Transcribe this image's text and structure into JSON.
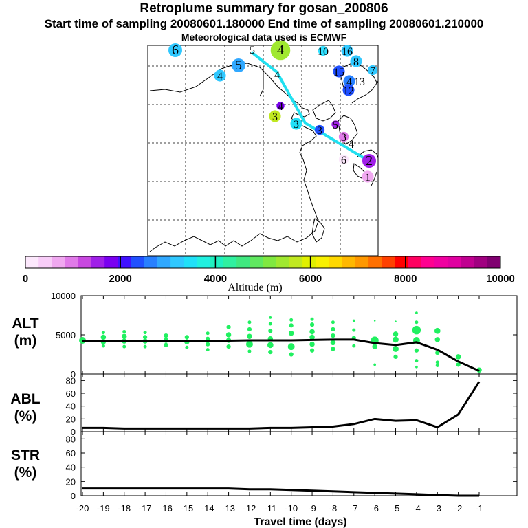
{
  "header": {
    "title": "Retroplume summary for gosan_200806",
    "sampling": "Start time of sampling 20080601.180000     End time of sampling 20080601.210000",
    "met": "Meteorological data used is ECMWF"
  },
  "colorbar": {
    "label": "Altitude (m)",
    "ticks": [
      "0",
      "2000",
      "4000",
      "6000",
      "8000",
      "10000"
    ],
    "colors": [
      "#fce8fc",
      "#f8cdf8",
      "#f0a8f0",
      "#e07ae8",
      "#c848e0",
      "#a020e8",
      "#7a00f0",
      "#4010ff",
      "#2050ff",
      "#2880ff",
      "#30a8ff",
      "#30c8ff",
      "#20e0f8",
      "#20f0e0",
      "#20f0c0",
      "#30f0a0",
      "#40e880",
      "#60e860",
      "#80e840",
      "#a0e830",
      "#c0e820",
      "#e0f000",
      "#f8f000",
      "#ffd800",
      "#ffb800",
      "#ff9800",
      "#ff7000",
      "#ff4000",
      "#ff0000",
      "#ff0060",
      "#ff0090",
      "#f000a0",
      "#e000a0",
      "#c00090",
      "#a00080",
      "#800070"
    ]
  },
  "map": {
    "labels": [
      {
        "t": "6",
        "c": "#30c8ff"
      },
      {
        "t": "5",
        "c": "#30a8ff"
      },
      {
        "t": "4",
        "c": "#30c8ff"
      },
      {
        "t": "5",
        "c": "#ffffff"
      },
      {
        "t": "4",
        "c": "#a0e830"
      },
      {
        "t": "4",
        "c": "#ffffff"
      },
      {
        "t": "10",
        "c": "#30e0ff"
      },
      {
        "t": "16",
        "c": "#30c8ff"
      },
      {
        "t": "8",
        "c": "#30c8ff"
      },
      {
        "t": "7",
        "c": "#30c8ff"
      },
      {
        "t": "15",
        "c": "#2050ff"
      },
      {
        "t": "4",
        "c": "#2880ff"
      },
      {
        "t": "13",
        "c": "#ffffff"
      },
      {
        "t": "12",
        "c": "#2050ff"
      },
      {
        "t": "4",
        "c": "#7a00f0"
      },
      {
        "t": "3",
        "c": "#c0e820"
      },
      {
        "t": "3",
        "c": "#20e0f8"
      },
      {
        "t": "3",
        "c": "#2050ff"
      },
      {
        "t": "5",
        "c": "#a020e8"
      },
      {
        "t": "3",
        "c": "#e07ae8"
      },
      {
        "t": "4",
        "c": "#ffffff"
      },
      {
        "t": "2",
        "c": "#a020e8"
      },
      {
        "t": "6",
        "c": "#fce8fc"
      },
      {
        "t": "1",
        "c": "#f0a8f0"
      }
    ]
  },
  "chart_data": [
    {
      "type": "scatter",
      "panel": "ALT",
      "ylabel": "ALT\n(m)",
      "ylabel_lines": [
        "ALT",
        "(m)"
      ],
      "ylim": [
        0,
        10000
      ],
      "yticks": [
        "0",
        "5000",
        "10000"
      ],
      "x": [
        -20,
        -19,
        -18,
        -17,
        -16,
        -15,
        -14,
        -13,
        -12,
        -11,
        -10,
        -9,
        -8,
        -7,
        -6,
        -5,
        -4,
        -3,
        -2,
        -1
      ],
      "median_line": [
        4200,
        4200,
        4200,
        4200,
        4200,
        4200,
        4200,
        4250,
        4300,
        4300,
        4300,
        4350,
        4400,
        4400,
        3950,
        3700,
        4050,
        3100,
        1600,
        400
      ],
      "spread_points": [
        [
          -20,
          4300,
          8
        ],
        [
          -19,
          5300,
          4
        ],
        [
          -19,
          4700,
          6
        ],
        [
          -19,
          4100,
          6
        ],
        [
          -19,
          3600,
          4
        ],
        [
          -18,
          5400,
          4
        ],
        [
          -18,
          4800,
          6
        ],
        [
          -18,
          4200,
          6
        ],
        [
          -18,
          3500,
          4
        ],
        [
          -17,
          5300,
          4
        ],
        [
          -17,
          4700,
          5
        ],
        [
          -17,
          4200,
          6
        ],
        [
          -17,
          3500,
          4
        ],
        [
          -16,
          4900,
          5
        ],
        [
          -16,
          4300,
          6
        ],
        [
          -16,
          3700,
          5
        ],
        [
          -15,
          4700,
          5
        ],
        [
          -15,
          4100,
          6
        ],
        [
          -15,
          3400,
          4
        ],
        [
          -14,
          5200,
          4
        ],
        [
          -14,
          4500,
          5
        ],
        [
          -14,
          3800,
          5
        ],
        [
          -14,
          3100,
          4
        ],
        [
          -13,
          6000,
          5
        ],
        [
          -13,
          5000,
          6
        ],
        [
          -13,
          4300,
          6
        ],
        [
          -13,
          3500,
          5
        ],
        [
          -12,
          6600,
          4
        ],
        [
          -12,
          5700,
          5
        ],
        [
          -12,
          4800,
          6
        ],
        [
          -12,
          3800,
          8
        ],
        [
          -12,
          2900,
          4
        ],
        [
          -11,
          7200,
          3
        ],
        [
          -11,
          6400,
          4
        ],
        [
          -11,
          5500,
          5
        ],
        [
          -11,
          4500,
          6
        ],
        [
          -11,
          3700,
          7
        ],
        [
          -11,
          2800,
          5
        ],
        [
          -10,
          6900,
          4
        ],
        [
          -10,
          6200,
          5
        ],
        [
          -10,
          5200,
          6
        ],
        [
          -10,
          3500,
          8
        ],
        [
          -10,
          2500,
          5
        ],
        [
          -9,
          7000,
          4
        ],
        [
          -9,
          6300,
          5
        ],
        [
          -9,
          5400,
          6
        ],
        [
          -9,
          4700,
          6
        ],
        [
          -9,
          3800,
          6
        ],
        [
          -9,
          3000,
          5
        ],
        [
          -8,
          6600,
          4
        ],
        [
          -8,
          5700,
          5
        ],
        [
          -8,
          4900,
          5
        ],
        [
          -8,
          4000,
          6
        ],
        [
          -8,
          3200,
          5
        ],
        [
          -7,
          6800,
          3
        ],
        [
          -7,
          5600,
          4
        ],
        [
          -7,
          4600,
          5
        ],
        [
          -7,
          3600,
          4
        ],
        [
          -6,
          6800,
          2
        ],
        [
          -6,
          4300,
          9
        ],
        [
          -6,
          3500,
          6
        ],
        [
          -6,
          1200,
          3
        ],
        [
          -5,
          6700,
          2
        ],
        [
          -5,
          5100,
          6
        ],
        [
          -5,
          4400,
          7
        ],
        [
          -5,
          3200,
          7
        ],
        [
          -5,
          2200,
          5
        ],
        [
          -4,
          7800,
          3
        ],
        [
          -4,
          6600,
          4
        ],
        [
          -4,
          5600,
          10
        ],
        [
          -4,
          4300,
          8
        ],
        [
          -4,
          3000,
          5
        ],
        [
          -4,
          1700,
          4
        ],
        [
          -4,
          900,
          3
        ],
        [
          -3,
          5500,
          7
        ],
        [
          -3,
          4400,
          6
        ],
        [
          -3,
          2700,
          5
        ],
        [
          -3,
          1500,
          4
        ],
        [
          -3,
          1100,
          4
        ],
        [
          -2,
          2200,
          6
        ],
        [
          -2,
          1200,
          5
        ],
        [
          -1,
          500,
          6
        ]
      ],
      "point_color": "#20f060"
    },
    {
      "type": "line",
      "panel": "ABL",
      "ylabel": "ABL\n(%)",
      "ylabel_lines": [
        "ABL",
        "(%)"
      ],
      "ylim": [
        0,
        90
      ],
      "yticks": [
        "0",
        "20",
        "40",
        "60",
        "80"
      ],
      "x": [
        -20,
        -19,
        -18,
        -17,
        -16,
        -15,
        -14,
        -13,
        -12,
        -11,
        -10,
        -9,
        -8,
        -7,
        -6,
        -5,
        -4,
        -3,
        -2,
        -1
      ],
      "values": [
        6,
        6,
        5,
        5,
        5,
        5,
        5,
        5,
        5,
        6,
        6,
        7,
        8,
        12,
        20,
        17,
        18,
        7,
        27,
        78
      ]
    },
    {
      "type": "line",
      "panel": "STR",
      "ylabel": "STR\n(%)",
      "ylabel_lines": [
        "STR",
        "(%)"
      ],
      "ylim": [
        0,
        90
      ],
      "yticks": [
        "0",
        "20",
        "40",
        "60",
        "80"
      ],
      "x": [
        -20,
        -19,
        -18,
        -17,
        -16,
        -15,
        -14,
        -13,
        -12,
        -11,
        -10,
        -9,
        -8,
        -7,
        -6,
        -5,
        -4,
        -3,
        -2,
        -1
      ],
      "values": [
        10,
        10,
        10,
        10,
        10,
        10,
        10,
        10,
        9,
        9,
        8,
        7,
        6,
        5,
        4,
        3,
        2,
        1,
        0,
        0
      ]
    }
  ],
  "xaxis": {
    "ticks": [
      "-20",
      "-19",
      "-18",
      "-17",
      "-16",
      "-15",
      "-14",
      "-13",
      "-12",
      "-11",
      "-10",
      "-9",
      "-8",
      "-7",
      "-6",
      "-5",
      "-4",
      "-3",
      "-2",
      "-1"
    ],
    "label": "Travel time (days)"
  }
}
